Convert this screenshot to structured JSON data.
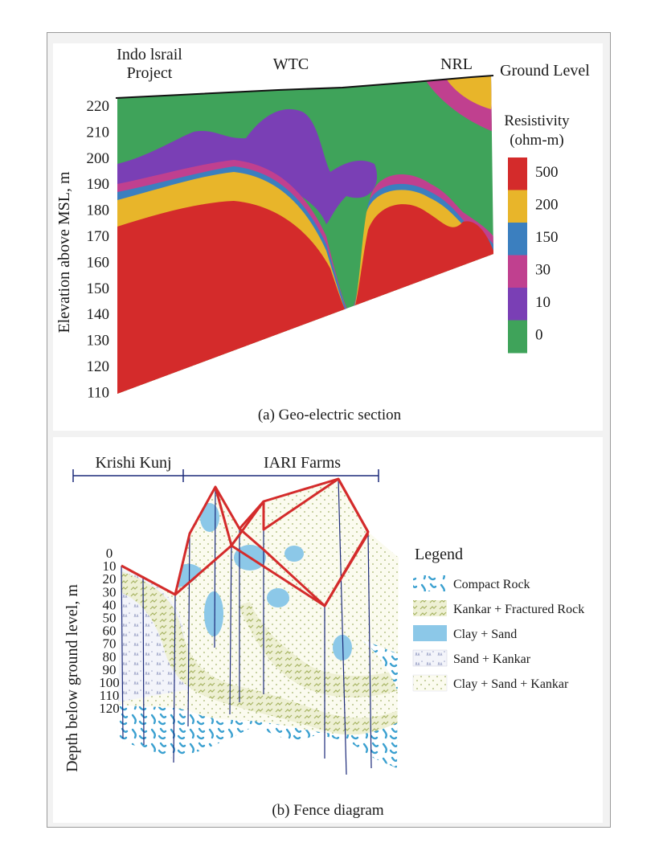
{
  "panel_a": {
    "labels": {
      "indo_line1": "Indo lsrail",
      "indo_line2": "Project",
      "wtc": "WTC",
      "nrl": "NRL",
      "ground_level": "Ground Level"
    },
    "y_axis_title": "Elevation above MSL, m",
    "y_ticks": [
      "220",
      "210",
      "200",
      "190",
      "180",
      "170",
      "160",
      "150",
      "140",
      "130",
      "120",
      "110"
    ],
    "legend_title_line1": "Resistivity",
    "legend_title_line2": "(ohm-m)",
    "legend": [
      {
        "value": "500",
        "color": "#d42b2b"
      },
      {
        "value": "200",
        "color": "#e8b52a"
      },
      {
        "value": "150",
        "color": "#3b7fbf"
      },
      {
        "value": "30",
        "color": "#c0408f"
      },
      {
        "value": "10",
        "color": "#7a3fb5"
      },
      {
        "value": "0",
        "color": "#3fa35a"
      }
    ],
    "caption": "(a) Geo-electric section"
  },
  "panel_b": {
    "header_left": "Krishi Kunj",
    "header_right": "IARI Farms",
    "y_axis_title": "Depth below ground level, m",
    "y_ticks": [
      "0",
      "10",
      "20",
      "30",
      "40",
      "50",
      "60",
      "70",
      "80",
      "90",
      "100",
      "110",
      "120"
    ],
    "legend_title": "Legend",
    "legend": [
      {
        "label": "Compact Rock",
        "icon": "compact-rock-swatch"
      },
      {
        "label": "Kankar + Fractured Rock",
        "icon": "kankar-swatch"
      },
      {
        "label": "Clay + Sand",
        "icon": "clay-sand-swatch"
      },
      {
        "label": "Sand + Kankar",
        "icon": "sand-kankar-swatch"
      },
      {
        "label": "Clay + Sand + Kankar",
        "icon": "clay-sand-kankar-swatch"
      }
    ],
    "caption": "(b) Fence diagram"
  },
  "colors": {
    "red": "#d42b2b",
    "yellow": "#e8b52a",
    "blue": "#3b7fbf",
    "magenta": "#c0408f",
    "purple": "#7a3fb5",
    "green": "#3fa35a",
    "fence_red": "#d42b2b",
    "clay_blue": "#8cc8e8"
  }
}
